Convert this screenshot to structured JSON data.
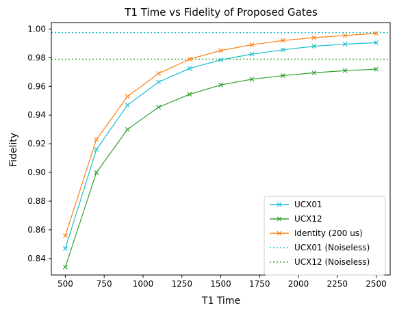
{
  "chart_data": {
    "type": "line",
    "title": "T1 Time vs Fidelity of Proposed Gates",
    "xlabel": "T1 Time",
    "ylabel": "Fidelity",
    "xlim": [
      410,
      2590
    ],
    "ylim": [
      0.8285,
      1.0045
    ],
    "x": [
      500,
      700,
      900,
      1100,
      1300,
      1500,
      1700,
      1900,
      2100,
      2300,
      2500
    ],
    "xticks": [
      500,
      750,
      1000,
      1250,
      1500,
      1750,
      2000,
      2250,
      2500
    ],
    "xtick_labels": [
      "500",
      "750",
      "1000",
      "1250",
      "1500",
      "1750",
      "2000",
      "2250",
      "2500"
    ],
    "yticks": [
      0.84,
      0.86,
      0.88,
      0.9,
      0.92,
      0.94,
      0.96,
      0.98,
      1.0
    ],
    "ytick_labels": [
      "0.84",
      "0.86",
      "0.88",
      "0.90",
      "0.92",
      "0.94",
      "0.96",
      "0.98",
      "1.00"
    ],
    "series": [
      {
        "name": "UCX01",
        "color": "#17becf",
        "style": "solid",
        "marker": "x",
        "values": [
          0.847,
          0.916,
          0.947,
          0.963,
          0.9725,
          0.9785,
          0.9825,
          0.9855,
          0.988,
          0.9895,
          0.9905
        ]
      },
      {
        "name": "UCX12",
        "color": "#2ca02c",
        "style": "solid",
        "marker": "x",
        "values": [
          0.834,
          0.9,
          0.93,
          0.9455,
          0.9545,
          0.961,
          0.965,
          0.9675,
          0.9695,
          0.971,
          0.972
        ]
      },
      {
        "name": "Identity (200 us)",
        "color": "#ff7f0e",
        "style": "solid",
        "marker": "x",
        "values": [
          0.856,
          0.923,
          0.953,
          0.969,
          0.979,
          0.985,
          0.989,
          0.992,
          0.994,
          0.9955,
          0.997
        ]
      }
    ],
    "hlines": [
      {
        "name": "UCX01 (Noiseless)",
        "color": "#17becf",
        "style": "dotted",
        "value": 0.9975
      },
      {
        "name": "UCX12 (Noiseless)",
        "color": "#2ca02c",
        "style": "dotted",
        "value": 0.979
      }
    ],
    "legend_position": "bottom-right",
    "grid": false
  }
}
